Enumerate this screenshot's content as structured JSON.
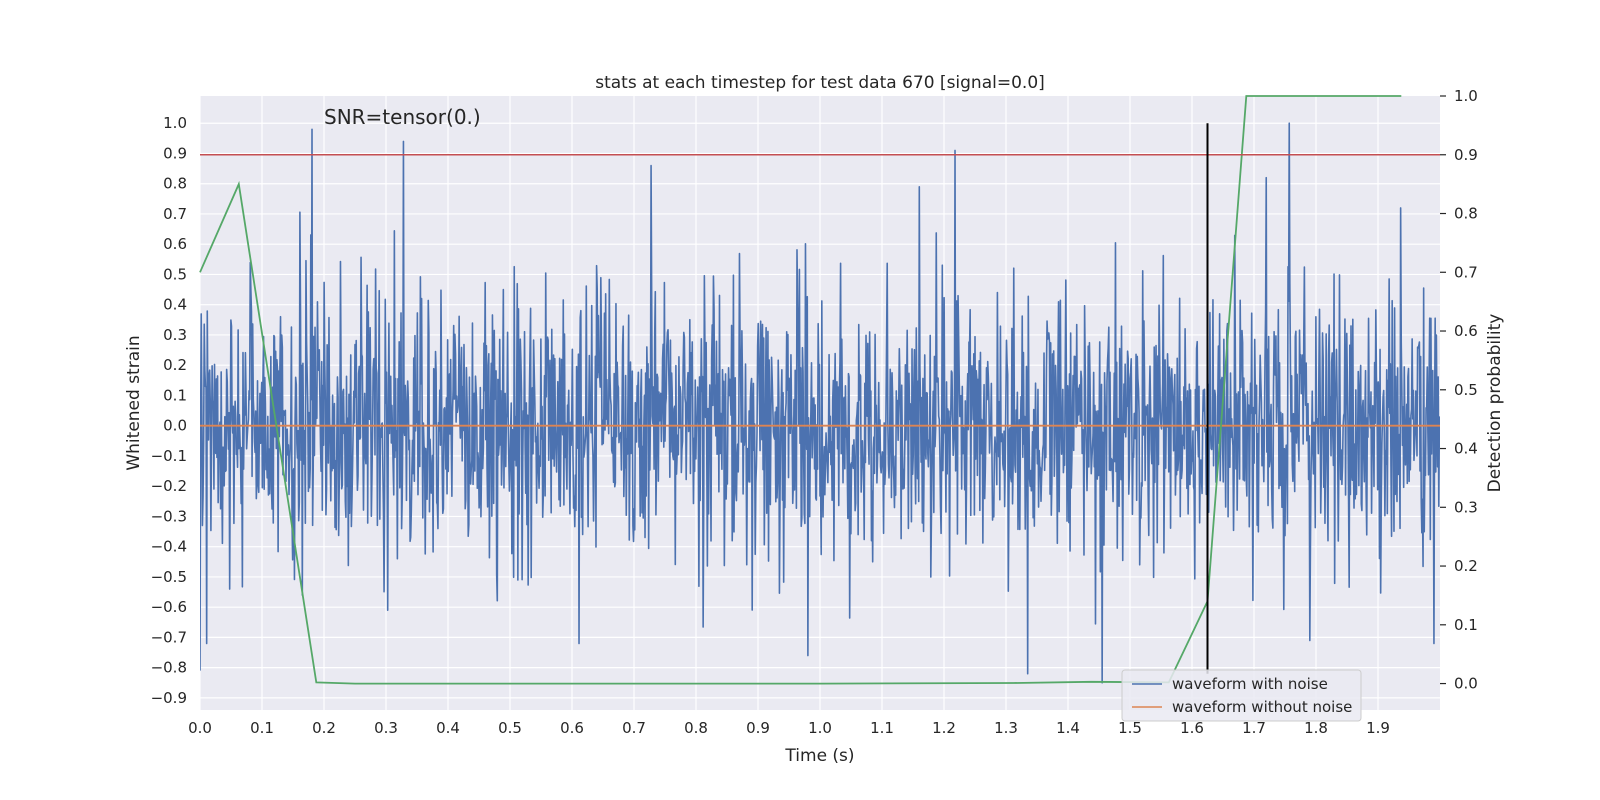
{
  "chart_data": {
    "type": "line",
    "title": "stats at each timestep for test data 670 [signal=0.0]",
    "xlabel": "Time (s)",
    "ylabel": "Whitened strain",
    "y2label": "Detection probability",
    "annotation": "SNR=tensor(0.)",
    "xlim": [
      0.0,
      2.0
    ],
    "ylim": [
      -0.94,
      1.09
    ],
    "y2lim": [
      -0.045,
      1.0
    ],
    "x_ticks": [
      0.0,
      0.1,
      0.2,
      0.3,
      0.4,
      0.5,
      0.6,
      0.7,
      0.8,
      0.9,
      1.0,
      1.1,
      1.2,
      1.3,
      1.4,
      1.5,
      1.6,
      1.7,
      1.8,
      1.9
    ],
    "x_tick_labels": [
      "0.0",
      "0.1",
      "0.2",
      "0.3",
      "0.4",
      "0.5",
      "0.6",
      "0.7",
      "0.8",
      "0.9",
      "1.0",
      "1.1",
      "1.2",
      "1.3",
      "1.4",
      "1.5",
      "1.6",
      "1.7",
      "1.8",
      "1.9"
    ],
    "y_ticks": [
      1.0,
      0.9,
      0.8,
      0.7,
      0.6,
      0.5,
      0.4,
      0.3,
      0.2,
      0.1,
      0.0,
      -0.1,
      -0.2,
      -0.3,
      -0.4,
      -0.5,
      -0.6,
      -0.7,
      -0.8,
      -0.9
    ],
    "y_tick_labels": [
      "1.0",
      "0.9",
      "0.8",
      "0.7",
      "0.6",
      "0.5",
      "0.4",
      "0.3",
      "0.2",
      "0.1",
      "0.0",
      "−0.1",
      "−0.2",
      "−0.3",
      "−0.4",
      "−0.5",
      "−0.6",
      "−0.7",
      "−0.8",
      "−0.9"
    ],
    "y2_ticks": [
      1.0,
      0.9,
      0.8,
      0.7,
      0.6,
      0.5,
      0.4,
      0.3,
      0.2,
      0.1,
      0.0
    ],
    "y2_tick_labels": [
      "1.0",
      "0.9",
      "0.8",
      "0.7",
      "0.6",
      "0.5",
      "0.4",
      "0.3",
      "0.2",
      "0.1",
      "0.0"
    ],
    "grid": true,
    "legend_position": "lower-right",
    "series": [
      {
        "name": "waveform with noise",
        "axis": "left",
        "color": "#4c72b0",
        "sample_count": 2048,
        "x_range": [
          0.0,
          2.0
        ],
        "rms": 0.22,
        "y_peaks": [
          {
            "x": 0.0,
            "y": -0.81
          },
          {
            "x": 0.181,
            "y": 0.98
          },
          {
            "x": 0.165,
            "y": -0.56
          },
          {
            "x": 0.328,
            "y": 0.94
          },
          {
            "x": 0.303,
            "y": -0.61
          },
          {
            "x": 0.728,
            "y": 0.86
          },
          {
            "x": 0.98,
            "y": -0.76
          },
          {
            "x": 1.218,
            "y": 0.91
          },
          {
            "x": 1.16,
            "y": 0.79
          },
          {
            "x": 1.335,
            "y": -0.82
          },
          {
            "x": 1.455,
            "y": -0.85
          },
          {
            "x": 1.757,
            "y": 1.0
          },
          {
            "x": 1.72,
            "y": 0.82
          },
          {
            "x": 1.99,
            "y": -0.72
          }
        ]
      },
      {
        "name": "waveform without noise",
        "axis": "left",
        "color": "#dd8452",
        "x": [
          0.0,
          2.0
        ],
        "y": [
          0.0,
          0.0
        ]
      },
      {
        "axis": "right",
        "color": "#55a868",
        "x": [
          0.0,
          0.0625,
          0.1875,
          0.25,
          0.5,
          1.0,
          1.3125,
          1.4375,
          1.5625,
          1.625,
          1.6875,
          1.75,
          1.9375
        ],
        "y": [
          0.7,
          0.85,
          0.002,
          0.0,
          0.0,
          0.0,
          0.001,
          0.003,
          0.002,
          0.14,
          1.0,
          1.0,
          1.0
        ]
      }
    ],
    "threshold": {
      "axis": "right",
      "y": 0.9,
      "color": "#c44e52"
    },
    "vertical_marker": {
      "x": 1.625,
      "axis": "left",
      "y_range": [
        -0.82,
        1.0
      ],
      "color": "#000000"
    }
  }
}
